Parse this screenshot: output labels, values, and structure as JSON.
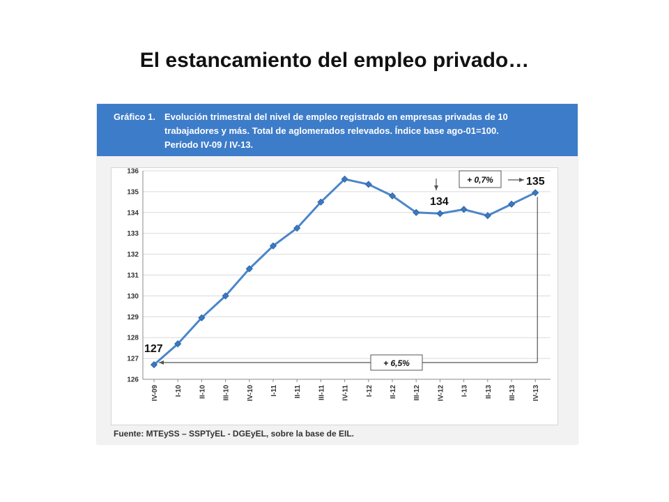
{
  "slide": {
    "title": "El estancamiento del empleo privado…"
  },
  "chart_header": {
    "label": "Gráfico 1.",
    "line1": "Evolución trimestral del nivel de empleo registrado en empresas privadas de 10",
    "line2": "trabajadores y más. Total de aglomerados relevados. Índice base ago-01=100.",
    "line3": "Período IV-09 / IV-13."
  },
  "source": "Fuente: MTEySS – SSPTyEL - DGEyEL, sobre la base de EIL.",
  "colors": {
    "header_bg": "#3d7cc9",
    "series_line": "#4a86c8",
    "marker": "#3b78c4",
    "grid": "#d9d9d9",
    "annotation": "#555555"
  },
  "chart_data": {
    "type": "line",
    "title": "",
    "xlabel": "",
    "ylabel": "",
    "categories": [
      "IV-09",
      "I-10",
      "II-10",
      "III-10",
      "IV-10",
      "I-11",
      "II-11",
      "III-11",
      "IV-11",
      "I-12",
      "II-12",
      "III-12",
      "IV-12",
      "I-13",
      "II-13",
      "III-13",
      "IV-13"
    ],
    "values": [
      126.7,
      127.7,
      128.95,
      130.0,
      131.3,
      132.4,
      133.25,
      134.5,
      135.6,
      135.35,
      134.8,
      134.0,
      133.95,
      134.15,
      133.85,
      134.4,
      134.95
    ],
    "ylim": [
      126,
      136
    ],
    "yticks": [
      126,
      127,
      128,
      129,
      130,
      131,
      132,
      133,
      134,
      135,
      136
    ],
    "grid": true,
    "annotations": {
      "start_label": "127",
      "mid_label": "134",
      "end_label": "135",
      "growth_total": "+ 6,5%",
      "growth_recent": "+ 0,7%"
    }
  }
}
